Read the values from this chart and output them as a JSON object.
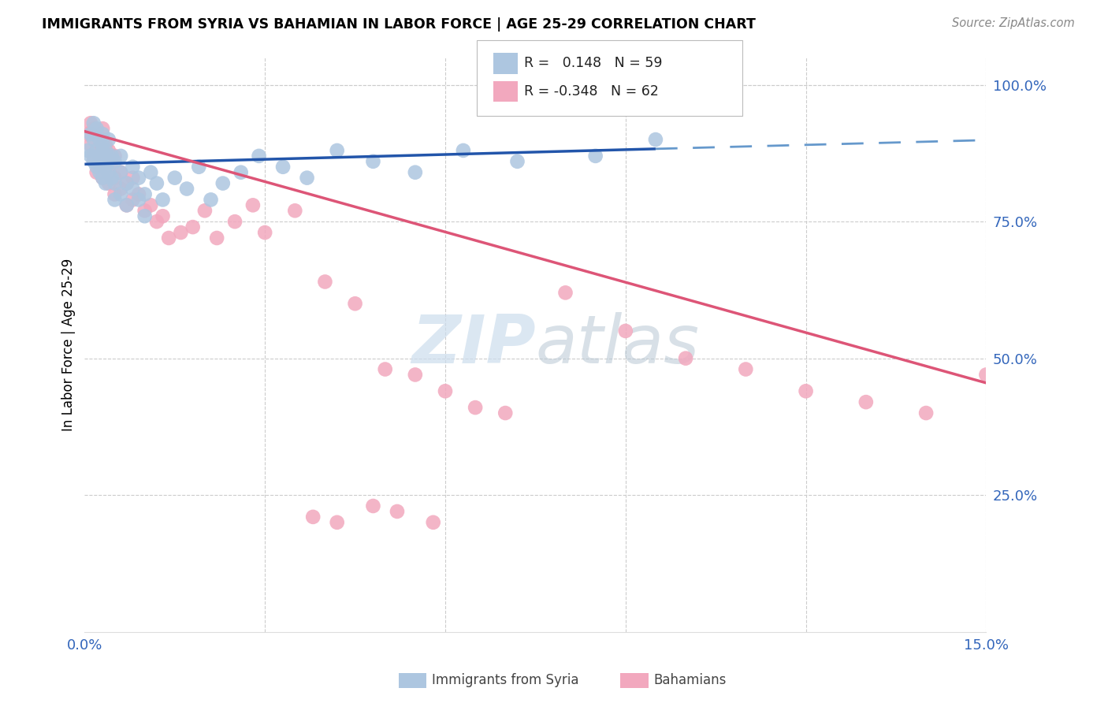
{
  "title": "IMMIGRANTS FROM SYRIA VS BAHAMIAN IN LABOR FORCE | AGE 25-29 CORRELATION CHART",
  "source": "Source: ZipAtlas.com",
  "ylabel": "In Labor Force | Age 25-29",
  "xlim": [
    0.0,
    0.15
  ],
  "ylim": [
    0.0,
    1.05
  ],
  "color_blue": "#adc6e0",
  "color_pink": "#f2a8be",
  "color_line_blue_solid": "#2255aa",
  "color_line_blue_dashed": "#6699cc",
  "color_line_pink": "#dd5577",
  "watermark_color": "#ccdded",
  "legend_label1": "Immigrants from Syria",
  "legend_label2": "Bahamians",
  "syria_x": [
    0.0005,
    0.001,
    0.001,
    0.0015,
    0.0015,
    0.0015,
    0.002,
    0.002,
    0.002,
    0.0025,
    0.0025,
    0.0025,
    0.003,
    0.003,
    0.003,
    0.003,
    0.003,
    0.0035,
    0.0035,
    0.0035,
    0.004,
    0.004,
    0.004,
    0.004,
    0.0045,
    0.0045,
    0.005,
    0.005,
    0.005,
    0.006,
    0.006,
    0.006,
    0.007,
    0.007,
    0.008,
    0.008,
    0.009,
    0.009,
    0.01,
    0.01,
    0.011,
    0.012,
    0.013,
    0.015,
    0.017,
    0.019,
    0.021,
    0.023,
    0.026,
    0.029,
    0.033,
    0.037,
    0.042,
    0.048,
    0.055,
    0.063,
    0.072,
    0.085,
    0.095
  ],
  "syria_y": [
    0.88,
    0.87,
    0.91,
    0.86,
    0.9,
    0.93,
    0.88,
    0.85,
    0.92,
    0.87,
    0.9,
    0.84,
    0.89,
    0.86,
    0.83,
    0.91,
    0.88,
    0.85,
    0.88,
    0.82,
    0.87,
    0.84,
    0.9,
    0.86,
    0.83,
    0.87,
    0.82,
    0.86,
    0.79,
    0.84,
    0.8,
    0.87,
    0.82,
    0.78,
    0.81,
    0.85,
    0.79,
    0.83,
    0.76,
    0.8,
    0.84,
    0.82,
    0.79,
    0.83,
    0.81,
    0.85,
    0.79,
    0.82,
    0.84,
    0.87,
    0.85,
    0.83,
    0.88,
    0.86,
    0.84,
    0.88,
    0.86,
    0.87,
    0.9
  ],
  "bahama_x": [
    0.0005,
    0.001,
    0.001,
    0.0015,
    0.0015,
    0.002,
    0.002,
    0.002,
    0.0025,
    0.003,
    0.003,
    0.003,
    0.003,
    0.0035,
    0.0035,
    0.004,
    0.004,
    0.004,
    0.0045,
    0.005,
    0.005,
    0.005,
    0.006,
    0.006,
    0.007,
    0.007,
    0.008,
    0.008,
    0.009,
    0.01,
    0.011,
    0.012,
    0.013,
    0.014,
    0.016,
    0.018,
    0.02,
    0.022,
    0.025,
    0.028,
    0.03,
    0.035,
    0.04,
    0.045,
    0.05,
    0.055,
    0.06,
    0.065,
    0.07,
    0.08,
    0.09,
    0.1,
    0.11,
    0.12,
    0.13,
    0.14,
    0.15,
    0.038,
    0.042,
    0.048,
    0.052,
    0.058
  ],
  "bahama_y": [
    0.91,
    0.89,
    0.93,
    0.87,
    0.92,
    0.88,
    0.84,
    0.91,
    0.86,
    0.9,
    0.87,
    0.83,
    0.92,
    0.85,
    0.89,
    0.84,
    0.88,
    0.82,
    0.86,
    0.83,
    0.87,
    0.8,
    0.84,
    0.81,
    0.82,
    0.78,
    0.79,
    0.83,
    0.8,
    0.77,
    0.78,
    0.75,
    0.76,
    0.72,
    0.73,
    0.74,
    0.77,
    0.72,
    0.75,
    0.78,
    0.73,
    0.77,
    0.64,
    0.6,
    0.48,
    0.47,
    0.44,
    0.41,
    0.4,
    0.62,
    0.55,
    0.5,
    0.48,
    0.44,
    0.42,
    0.4,
    0.47,
    0.21,
    0.2,
    0.23,
    0.22,
    0.2
  ],
  "syria_line_x0": 0.0,
  "syria_line_y0": 0.855,
  "syria_line_x1": 0.095,
  "syria_line_y1": 0.883,
  "syria_line_dash_x0": 0.095,
  "syria_line_dash_y0": 0.883,
  "syria_line_dash_x1": 0.15,
  "syria_line_dash_y1": 0.899,
  "bah_line_x0": 0.0,
  "bah_line_y0": 0.915,
  "bah_line_x1": 0.15,
  "bah_line_y1": 0.455
}
